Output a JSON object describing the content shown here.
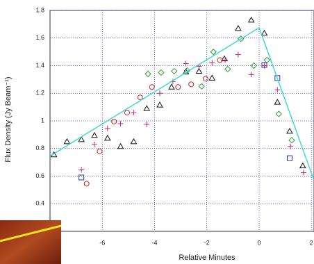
{
  "chart_data": {
    "type": "scatter",
    "x_label": "Relative Minutes",
    "y_label": "Flux Density (Jy Beam⁻¹)",
    "xlim": [
      -8,
      2.1
    ],
    "ylim": [
      0.2,
      1.8
    ],
    "xticks": [
      -6,
      -4,
      -2,
      0,
      2
    ],
    "yticks": [
      0.4,
      0.6,
      0.8,
      1,
      1.2,
      1.4,
      1.6,
      1.8
    ],
    "grid": true,
    "series": [
      {
        "marker": "triangle",
        "color": "#111111",
        "x": [
          -7.85,
          -7.35,
          -6.8,
          -6.3,
          -5.8,
          -5.3,
          -4.8,
          -4.3,
          -3.8,
          -3.35,
          -2.8,
          -2.3,
          -1.8,
          -1.33,
          -0.8,
          -0.3,
          0.2,
          0.7,
          1.17,
          1.67
        ],
        "values": [
          0.755,
          0.85,
          0.865,
          0.895,
          0.875,
          0.815,
          0.85,
          1.09,
          1.115,
          1.245,
          1.355,
          1.36,
          1.31,
          1.45,
          1.67,
          1.73,
          1.635,
          1.135,
          0.925,
          0.675
        ]
      },
      {
        "marker": "circle",
        "color": "#cc2222",
        "x": [
          -6.6,
          -6.1,
          -5.55,
          -5.05,
          -4.55,
          -4.1,
          -3.1,
          -2.6,
          -2.05,
          -1.5
        ],
        "values": [
          0.545,
          0.78,
          0.995,
          1.06,
          1.17,
          1.245,
          1.245,
          1.265,
          1.305,
          1.44
        ]
      },
      {
        "marker": "plus",
        "color": "#cc2277",
        "x": [
          -6.8,
          -6.3,
          -5.8,
          -5.3,
          -4.8,
          -4.3,
          -3.8,
          -3.3,
          -2.8,
          -2.3,
          -1.8,
          -1.3,
          -0.8,
          -0.3,
          0.2,
          0.7,
          1.2,
          1.7
        ],
        "values": [
          0.645,
          0.83,
          0.945,
          0.98,
          1.06,
          0.975,
          1.2,
          1.285,
          1.415,
          1.395,
          1.42,
          1.44,
          1.48,
          1.335,
          1.4,
          1.225,
          0.815,
          0.625
        ]
      },
      {
        "marker": "diamond",
        "color": "#339933",
        "x": [
          -4.25,
          -3.75,
          -3.25,
          -2.75,
          -2.2,
          -1.75,
          -1.2,
          -0.7,
          -0.2,
          0.3,
          0.75,
          1.25
        ],
        "values": [
          1.34,
          1.35,
          1.36,
          1.365,
          1.25,
          1.5,
          1.375,
          1.595,
          1.4,
          1.44,
          1.05,
          0.86
        ]
      },
      {
        "marker": "square",
        "color": "#2233aa",
        "x": [
          -6.8,
          0.2,
          0.7,
          1.17
        ],
        "values": [
          0.59,
          1.405,
          1.31,
          0.73
        ]
      },
      {
        "marker": "line",
        "color": "#44d6dd",
        "x": [
          -8,
          0,
          2.07
        ],
        "values": [
          0.745,
          1.675,
          0.585
        ]
      }
    ]
  }
}
